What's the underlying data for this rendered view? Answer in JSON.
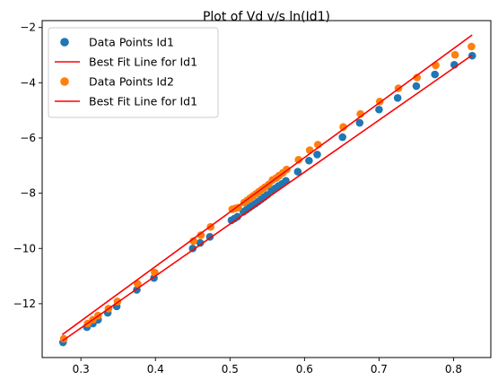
{
  "colors": {
    "id1": "#1f77b4",
    "id2": "#ff7f0e",
    "fit": "#ff0000"
  },
  "chart_data": {
    "type": "scatter",
    "title": "Plot of Vd v/s ln(Id1)",
    "xlabel": "",
    "ylabel": "",
    "xlim": [
      0.248,
      0.85
    ],
    "ylim": [
      -13.95,
      -1.75
    ],
    "xticks": [
      0.3,
      0.4,
      0.5,
      0.6,
      0.7,
      0.8
    ],
    "xtick_labels": [
      "0.3",
      "0.4",
      "0.5",
      "0.6",
      "0.7",
      "0.8"
    ],
    "yticks": [
      -12,
      -10,
      -8,
      -6,
      -4,
      -2
    ],
    "ytick_labels": [
      "−12",
      "−10",
      "−8",
      "−6",
      "−4",
      "−2"
    ],
    "grid": false,
    "legend_position": "top-left",
    "legend": [
      {
        "label": "Data Points Id1",
        "kind": "marker",
        "color": "#1f77b4"
      },
      {
        "label": "Best Fit Line for Id1",
        "kind": "line",
        "color": "#ff0000"
      },
      {
        "label": "Data Points Id2",
        "kind": "marker",
        "color": "#ff7f0e"
      },
      {
        "label": "Best Fit Line for Id1",
        "kind": "line",
        "color": "#ff0000"
      }
    ],
    "series": [
      {
        "name": "Data Points Id1",
        "kind": "scatter",
        "color": "#1f77b4",
        "points": [
          [
            0.276,
            -13.4
          ],
          [
            0.308,
            -12.85
          ],
          [
            0.316,
            -12.72
          ],
          [
            0.323,
            -12.58
          ],
          [
            0.336,
            -12.33
          ],
          [
            0.348,
            -12.1
          ],
          [
            0.375,
            -11.5
          ],
          [
            0.398,
            -11.07
          ],
          [
            0.45,
            -10.0
          ],
          [
            0.46,
            -9.8
          ],
          [
            0.473,
            -9.58
          ],
          [
            0.502,
            -8.98
          ],
          [
            0.506,
            -8.92
          ],
          [
            0.51,
            -8.85
          ],
          [
            0.518,
            -8.67
          ],
          [
            0.522,
            -8.6
          ],
          [
            0.526,
            -8.52
          ],
          [
            0.53,
            -8.45
          ],
          [
            0.534,
            -8.38
          ],
          [
            0.538,
            -8.3
          ],
          [
            0.542,
            -8.22
          ],
          [
            0.546,
            -8.14
          ],
          [
            0.55,
            -8.06
          ],
          [
            0.556,
            -7.9
          ],
          [
            0.561,
            -7.82
          ],
          [
            0.565,
            -7.74
          ],
          [
            0.57,
            -7.66
          ],
          [
            0.575,
            -7.55
          ],
          [
            0.591,
            -7.22
          ],
          [
            0.606,
            -6.82
          ],
          [
            0.617,
            -6.6
          ],
          [
            0.651,
            -5.97
          ],
          [
            0.674,
            -5.45
          ],
          [
            0.7,
            -4.97
          ],
          [
            0.725,
            -4.55
          ],
          [
            0.75,
            -4.12
          ],
          [
            0.775,
            -3.7
          ],
          [
            0.801,
            -3.35
          ],
          [
            0.825,
            -3.02
          ]
        ]
      },
      {
        "name": "Data Points Id2",
        "kind": "scatter",
        "color": "#ff7f0e",
        "points": [
          [
            0.277,
            -13.27
          ],
          [
            0.309,
            -12.72
          ],
          [
            0.316,
            -12.58
          ],
          [
            0.323,
            -12.43
          ],
          [
            0.337,
            -12.18
          ],
          [
            0.349,
            -11.92
          ],
          [
            0.376,
            -11.28
          ],
          [
            0.399,
            -10.87
          ],
          [
            0.451,
            -9.73
          ],
          [
            0.461,
            -9.52
          ],
          [
            0.474,
            -9.22
          ],
          [
            0.503,
            -8.58
          ],
          [
            0.507,
            -8.55
          ],
          [
            0.511,
            -8.52
          ],
          [
            0.519,
            -8.34
          ],
          [
            0.523,
            -8.26
          ],
          [
            0.527,
            -8.18
          ],
          [
            0.531,
            -8.1
          ],
          [
            0.535,
            -8.02
          ],
          [
            0.539,
            -7.94
          ],
          [
            0.543,
            -7.86
          ],
          [
            0.547,
            -7.78
          ],
          [
            0.552,
            -7.68
          ],
          [
            0.557,
            -7.52
          ],
          [
            0.562,
            -7.45
          ],
          [
            0.566,
            -7.36
          ],
          [
            0.571,
            -7.26
          ],
          [
            0.576,
            -7.14
          ],
          [
            0.592,
            -6.79
          ],
          [
            0.607,
            -6.44
          ],
          [
            0.618,
            -6.24
          ],
          [
            0.652,
            -5.6
          ],
          [
            0.675,
            -5.13
          ],
          [
            0.701,
            -4.68
          ],
          [
            0.726,
            -4.2
          ],
          [
            0.751,
            -3.81
          ],
          [
            0.776,
            -3.37
          ],
          [
            0.802,
            -2.99
          ],
          [
            0.824,
            -2.69
          ]
        ]
      },
      {
        "name": "Best Fit Line for Id1",
        "kind": "line",
        "color": "#ff0000",
        "points": [
          [
            0.275,
            -13.35
          ],
          [
            0.825,
            -3.0
          ]
        ]
      },
      {
        "name": "Best Fit Line for Id1",
        "kind": "line",
        "color": "#ff0000",
        "points": [
          [
            0.275,
            -13.12
          ],
          [
            0.825,
            -2.27
          ]
        ]
      }
    ]
  }
}
